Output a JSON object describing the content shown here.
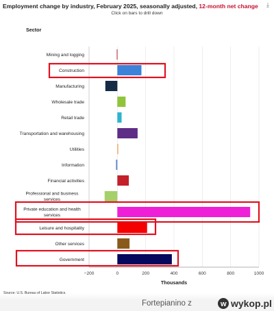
{
  "header": {
    "title_main": "Employment change by industry, February 2025, seasonally adjusted,",
    "title_highlight": "12-month net change",
    "subtitle": "Click on bars to drill down"
  },
  "chart_data": {
    "type": "bar",
    "orientation": "horizontal",
    "category_axis_label": "Sector",
    "xlabel": "Thousands",
    "xlim": [
      -200,
      1000
    ],
    "x_ticks": [
      "−200",
      "0",
      "200",
      "400",
      "600",
      "800",
      "1000"
    ],
    "grid": true,
    "categories": [
      "Mining and logging",
      "Construction",
      "Manufacturing",
      "Wholesale trade",
      "Retail trade",
      "Transportation and warehousing",
      "Utilities",
      "Information",
      "Financial activities",
      "Professional and business services",
      "Private education and health services",
      "Leisure and hospitality",
      "Other services",
      "Government"
    ],
    "values": [
      -4,
      170,
      -85,
      58,
      30,
      143,
      6,
      -10,
      81,
      -90,
      938,
      210,
      86,
      385
    ],
    "colors": [
      "#b41f2a",
      "#3b82d8",
      "#142a45",
      "#8fc43b",
      "#2bb5cf",
      "#5e2d86",
      "#f0a050",
      "#6b8fd0",
      "#c4202a",
      "#a6d06a",
      "#ee1fd6",
      "#f40000",
      "#8a5a1c",
      "#06085e"
    ],
    "highlighted": [
      "Construction",
      "Private education and health services",
      "Leisure and hospitality",
      "Government"
    ],
    "highlight_color": "#e0101e",
    "source": "Source: U.S. Bureau of Labor Statistics."
  },
  "watermark": {
    "user": "Fortepianino",
    "separator": "z",
    "site": "wykop.pl"
  }
}
